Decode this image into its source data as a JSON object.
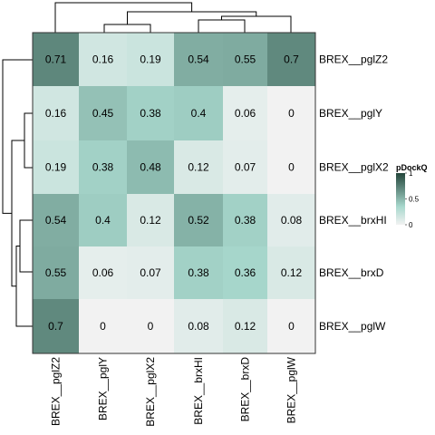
{
  "chart_data": {
    "type": "heatmap",
    "rows": [
      "BREX__pglZ2",
      "BREX__pglY",
      "BREX__pglX2",
      "BREX__brxHI",
      "BREX__brxD",
      "BREX__pglW"
    ],
    "columns": [
      "BREX__pglZ2",
      "BREX__pglY",
      "BREX__pglX2",
      "BREX__brxHI",
      "BREX__brxD",
      "BREX__pglW"
    ],
    "values": [
      [
        0.71,
        0.16,
        0.19,
        0.54,
        0.55,
        0.7
      ],
      [
        0.16,
        0.45,
        0.38,
        0.4,
        0.06,
        0
      ],
      [
        0.19,
        0.38,
        0.48,
        0.12,
        0.07,
        0
      ],
      [
        0.54,
        0.4,
        0.12,
        0.52,
        0.38,
        0.08
      ],
      [
        0.55,
        0.06,
        0.07,
        0.38,
        0.36,
        0.12
      ],
      [
        0.7,
        0,
        0,
        0.08,
        0.12,
        0
      ]
    ],
    "cell_labels": [
      [
        "0.71",
        "0.16",
        "0.19",
        "0.54",
        "0.55",
        "0.7"
      ],
      [
        "0.16",
        "0.45",
        "0.38",
        "0.4",
        "0.06",
        "0"
      ],
      [
        "0.19",
        "0.38",
        "0.48",
        "0.12",
        "0.07",
        "0"
      ],
      [
        "0.54",
        "0.4",
        "0.12",
        "0.52",
        "0.38",
        "0.08"
      ],
      [
        "0.55",
        "0.06",
        "0.07",
        "0.38",
        "0.36",
        "0.12"
      ],
      [
        "0.7",
        "0",
        "0",
        "0.08",
        "0.12",
        "0"
      ]
    ],
    "legend": {
      "title": "pDockQ",
      "ticks": [
        "0",
        "0.5",
        "1"
      ],
      "tick_values": [
        0,
        0.5,
        1
      ],
      "placement": "right"
    },
    "color_scale": {
      "range": [
        0,
        1
      ],
      "stops": [
        "#f2f2f2",
        "#a8d8cd",
        "#23453a"
      ]
    },
    "dendrograms": {
      "rows": true,
      "columns": true
    }
  }
}
